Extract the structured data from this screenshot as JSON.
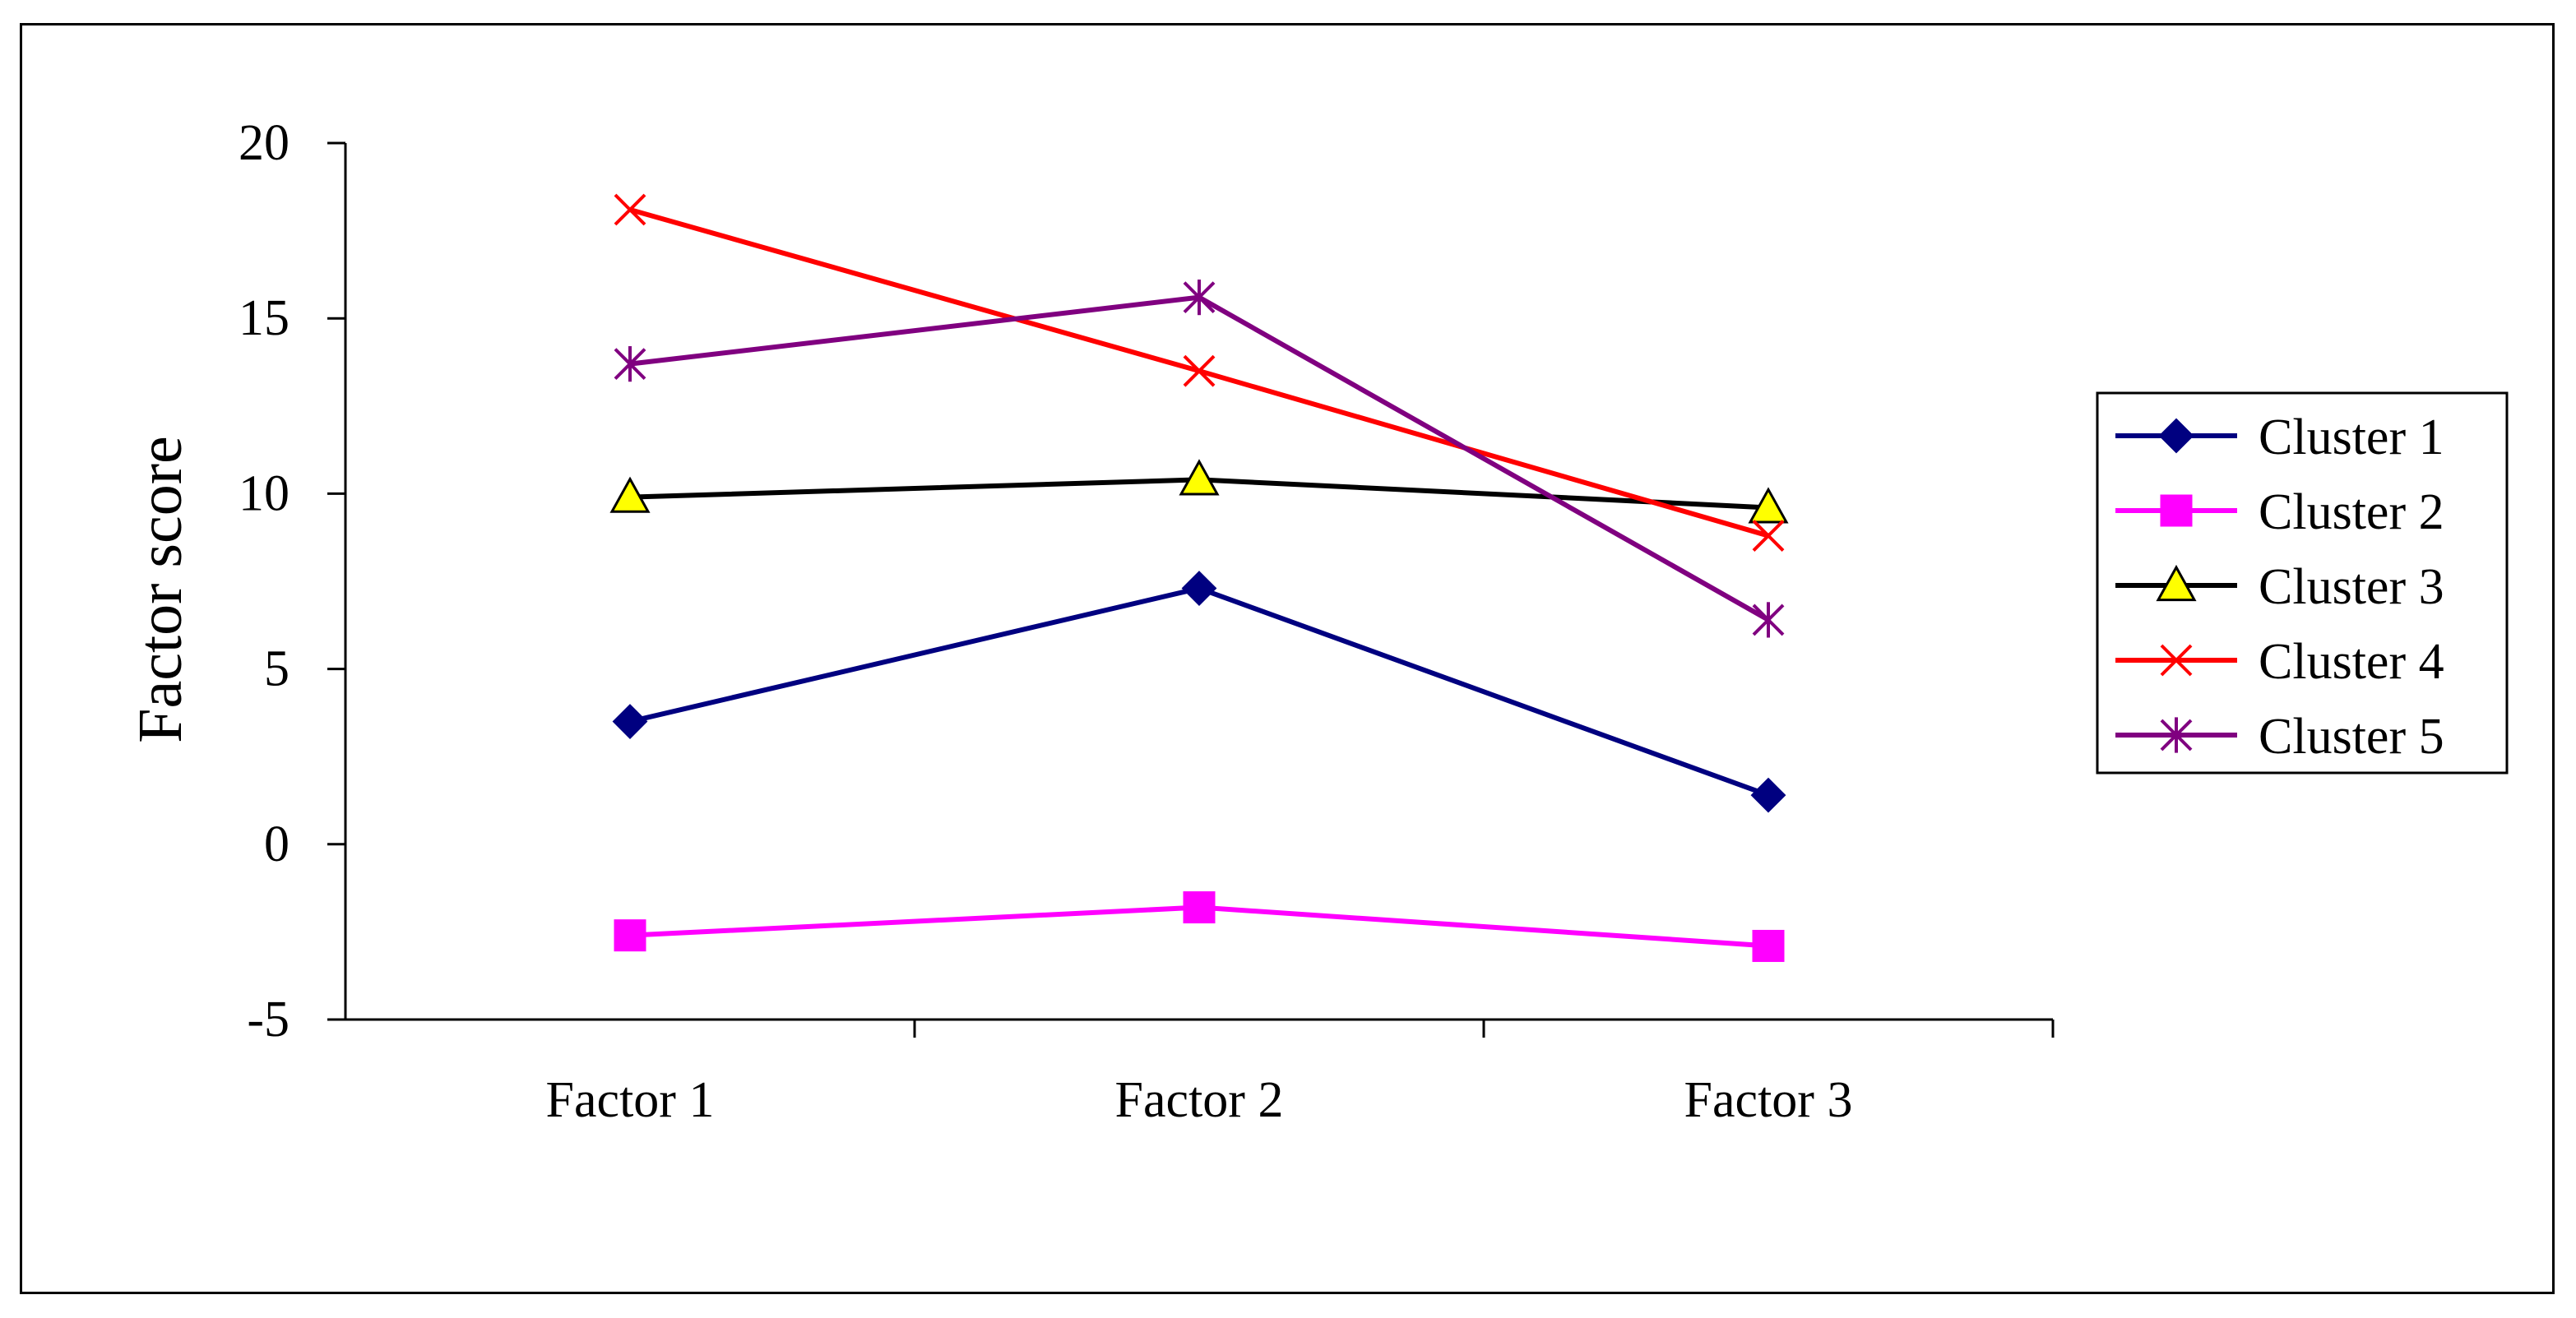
{
  "chart_data": {
    "type": "line",
    "title": "",
    "xlabel": "",
    "ylabel": "Factor score",
    "categories": [
      "Factor 1",
      "Factor 2",
      "Factor 3"
    ],
    "ylim": [
      -5,
      20
    ],
    "yticks": [
      -5,
      0,
      5,
      10,
      15,
      20
    ],
    "grid": false,
    "legend_position": "right",
    "series": [
      {
        "name": "Cluster 1",
        "values": [
          3.5,
          7.3,
          1.4
        ],
        "color": "#000080",
        "marker": "diamond"
      },
      {
        "name": "Cluster 2",
        "values": [
          -2.6,
          -1.8,
          -2.9
        ],
        "color": "#FF00FF",
        "marker": "square"
      },
      {
        "name": "Cluster 3",
        "values": [
          9.9,
          10.4,
          9.6
        ],
        "color": "#000000",
        "marker": "triangle",
        "marker_fill": "#FFFF00"
      },
      {
        "name": "Cluster 4",
        "values": [
          18.1,
          13.5,
          8.8
        ],
        "color": "#FF0000",
        "marker": "x"
      },
      {
        "name": "Cluster 5",
        "values": [
          13.7,
          15.6,
          6.4
        ],
        "color": "#800080",
        "marker": "star"
      }
    ]
  }
}
